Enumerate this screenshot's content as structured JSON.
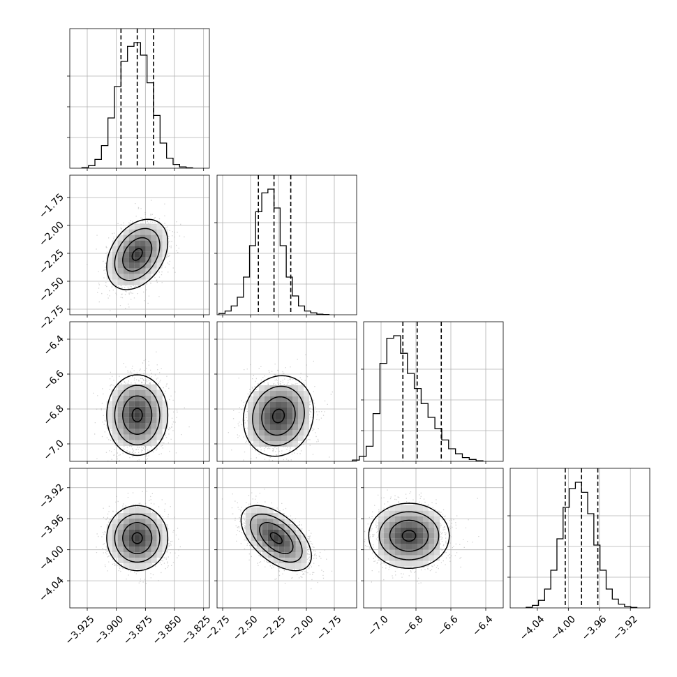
{
  "chart_data": {
    "type": "corner",
    "parameters": [
      {
        "center": -3.882,
        "sigma": 0.0125,
        "range": [
          -3.94,
          -3.82
        ],
        "ticks": [
          -3.925,
          -3.9,
          -3.875,
          -3.85,
          -3.825
        ],
        "tick_labels": [
          "−3.925",
          "−3.900",
          "−3.875",
          "−3.850",
          "−3.825"
        ],
        "quantiles": [
          -3.896,
          -3.882,
          -3.868
        ],
        "hist": [
          0.005,
          0.02,
          0.07,
          0.18,
          0.4,
          0.65,
          0.85,
          0.97,
          1.0,
          0.9,
          0.68,
          0.42,
          0.2,
          0.08,
          0.03,
          0.01,
          0.003
        ]
      },
      {
        "center": -2.29,
        "sigma": 0.15,
        "range": [
          -2.8,
          -1.55
        ],
        "ticks": [
          -2.75,
          -2.5,
          -2.25,
          -2.0,
          -1.75
        ],
        "tick_labels": [
          "−2.75",
          "−2.50",
          "−2.25",
          "−2.00",
          "−1.75"
        ],
        "quantiles": [
          -2.43,
          -2.29,
          -2.14
        ],
        "hist": [
          0.01,
          0.03,
          0.07,
          0.14,
          0.3,
          0.55,
          0.82,
          0.97,
          1.0,
          0.85,
          0.55,
          0.3,
          0.15,
          0.07,
          0.03,
          0.015,
          0.005,
          0.002
        ]
      },
      {
        "center": -6.79,
        "sigma": 0.11,
        "range": [
          -7.1,
          -6.3
        ],
        "ticks": [
          -7.0,
          -6.8,
          -6.6,
          -6.4
        ],
        "tick_labels": [
          "−7.0",
          "−6.8",
          "−6.6",
          "−6.4"
        ],
        "quantiles": [
          -6.875,
          -6.793,
          -6.655
        ],
        "hist": [
          0.01,
          0.04,
          0.12,
          0.38,
          0.78,
          0.98,
          1.0,
          0.86,
          0.7,
          0.58,
          0.46,
          0.35,
          0.26,
          0.17,
          0.1,
          0.06,
          0.03,
          0.015,
          0.005
        ]
      },
      {
        "center": -3.983,
        "sigma": 0.02,
        "range": [
          -4.075,
          -3.895
        ],
        "ticks": [
          -4.04,
          -4.0,
          -3.96,
          -3.92
        ],
        "tick_labels": [
          "−4.04",
          "−4.00",
          "−3.96",
          "−3.92"
        ],
        "quantiles": [
          -4.004,
          -3.983,
          -3.962
        ],
        "hist": [
          0.005,
          0.02,
          0.06,
          0.15,
          0.3,
          0.55,
          0.8,
          0.95,
          1.0,
          0.92,
          0.75,
          0.5,
          0.3,
          0.15,
          0.07,
          0.03,
          0.01,
          0.004
        ]
      }
    ],
    "pairs": [
      {
        "row": 1,
        "col": 0,
        "rho": 0.35,
        "peak": [
          -3.882,
          -2.26
        ]
      },
      {
        "row": 2,
        "col": 0,
        "rho": 0.0,
        "peak": [
          -3.882,
          -6.835
        ]
      },
      {
        "row": 2,
        "col": 1,
        "rho": 0.1,
        "peak": [
          -2.25,
          -6.84
        ]
      },
      {
        "row": 3,
        "col": 0,
        "rho": 0.0,
        "peak": [
          -3.882,
          -3.985
        ]
      },
      {
        "row": 3,
        "col": 1,
        "rho": -0.55,
        "peak": [
          -2.27,
          -3.985
        ]
      },
      {
        "row": 3,
        "col": 2,
        "rho": 0.0,
        "peak": [
          -6.84,
          -3.982
        ]
      }
    ],
    "grid": true
  }
}
